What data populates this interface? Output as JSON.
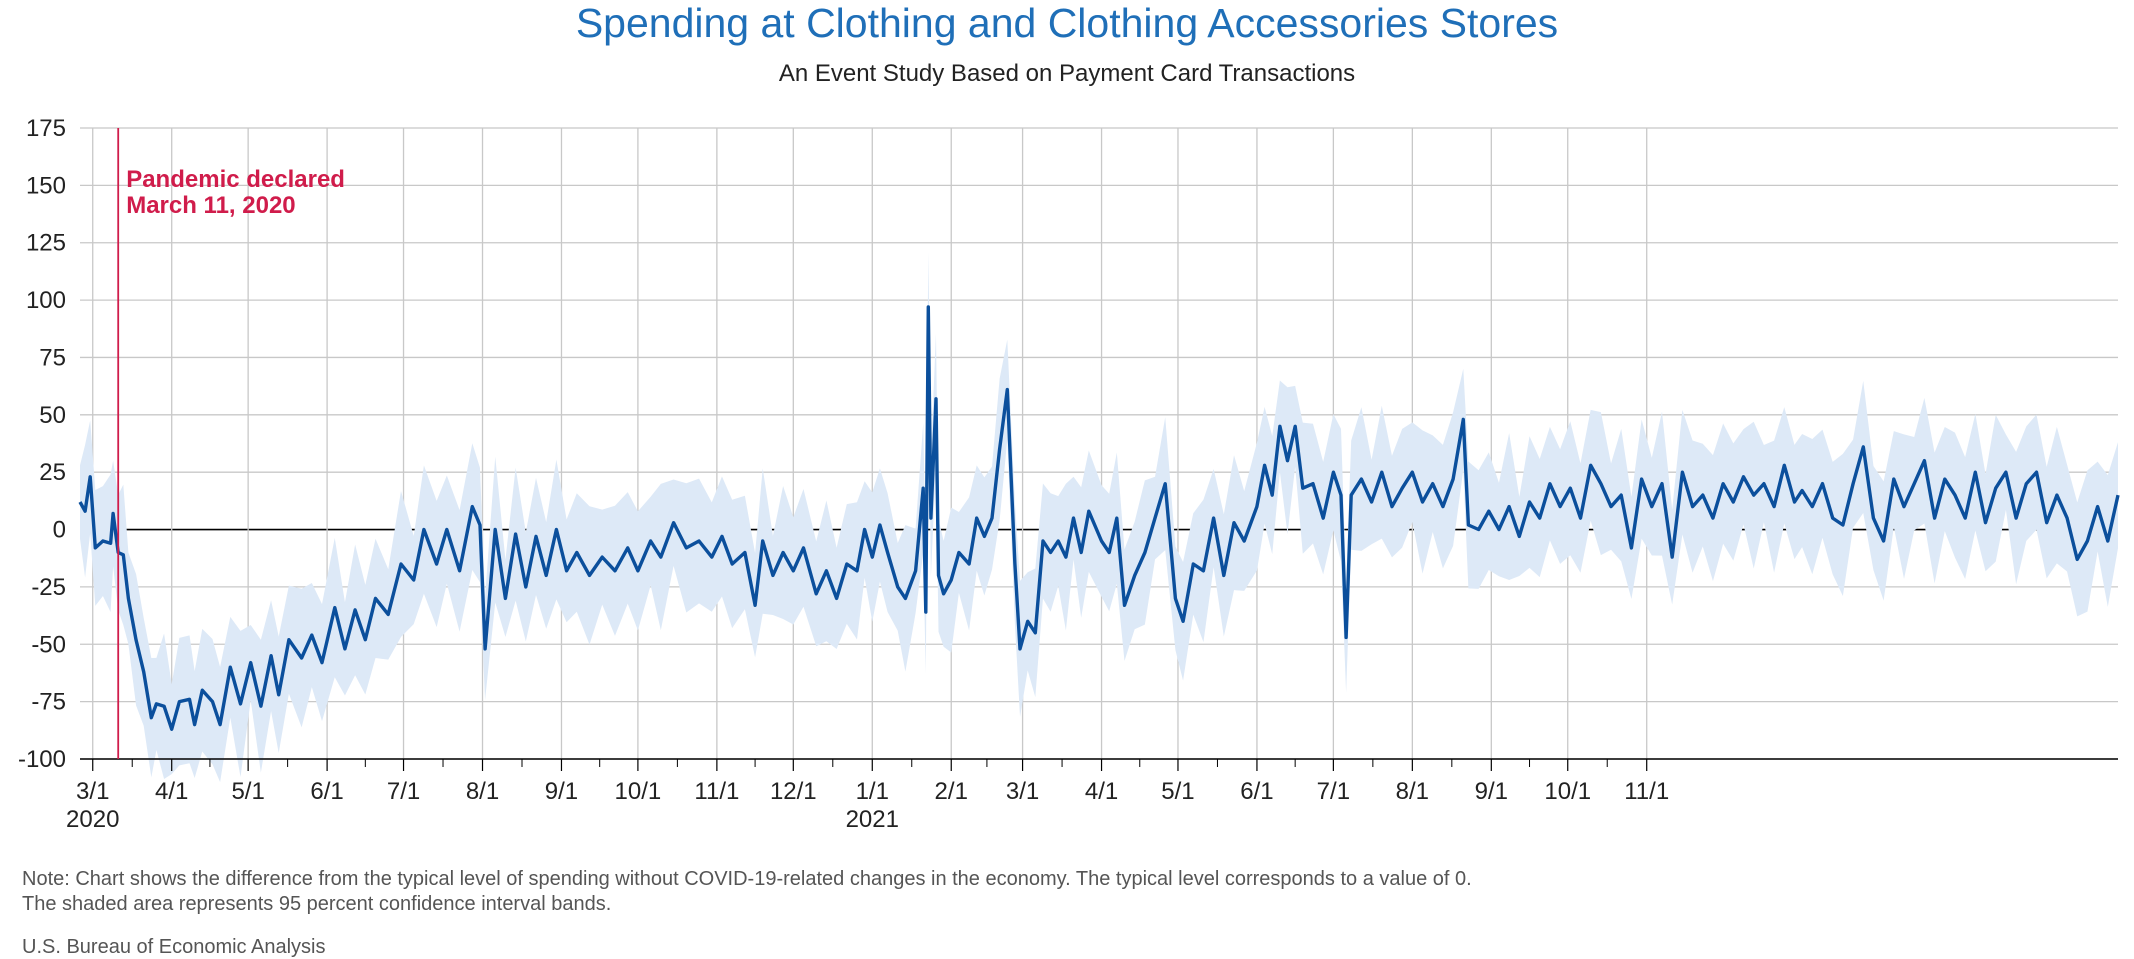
{
  "title": "Spending at Clothing and Clothing Accessories Stores",
  "subtitle": "An Event Study Based on Payment Card Transactions",
  "note_line1": "Note: Chart shows the difference from the typical level of spending without COVID-19-related changes in the economy. The typical level corresponds to a value of 0.",
  "note_line2": "The shaded area represents 95 percent confidence interval bands.",
  "source": "U.S. Bureau of Economic Analysis",
  "colors": {
    "line": "#0b4f9c",
    "band": "#dde9f7",
    "annotation": "#d01c4b",
    "grid": "#c8c8c8",
    "zero": "#000000",
    "title": "#1f6fb8"
  },
  "chart_data": {
    "type": "line",
    "title": "Spending at Clothing and Clothing Accessories Stores",
    "subtitle": "An Event Study Based on Payment Card Transactions",
    "ylim": [
      -100,
      175
    ],
    "y_ticks": [
      "175",
      "150",
      "125",
      "100",
      "75",
      "50",
      "25",
      "0",
      "-25",
      "-50",
      "-75",
      "-100"
    ],
    "x_tick_labels": [
      "3/1",
      "4/1",
      "5/1",
      "6/1",
      "7/1",
      "8/1",
      "9/1",
      "10/1",
      "11/1",
      "12/1",
      "1/1",
      "2/1",
      "3/1",
      "4/1",
      "5/1",
      "6/1",
      "7/1",
      "8/1",
      "9/1",
      "10/1",
      "11/1"
    ],
    "year_labels": [
      {
        "label": "2020",
        "at": "3/1/2020"
      },
      {
        "label": "2021",
        "at": "1/1/2021"
      }
    ],
    "annotation": {
      "label_line1": "Pandemic declared",
      "label_line2": "March 11, 2020",
      "date": "2020-03-11"
    },
    "grid": true,
    "x_start": "2020-02-25",
    "x_end": "2021-11-12",
    "series_key_points": [
      [
        "2020-02-25",
        12
      ],
      [
        "2020-02-27",
        8
      ],
      [
        "2020-02-29",
        23
      ],
      [
        "2020-03-02",
        -8
      ],
      [
        "2020-03-05",
        -5
      ],
      [
        "2020-03-08",
        -6
      ],
      [
        "2020-03-09",
        7
      ],
      [
        "2020-03-11",
        -10
      ],
      [
        "2020-03-13",
        -11
      ],
      [
        "2020-03-15",
        -30
      ],
      [
        "2020-03-18",
        -48
      ],
      [
        "2020-03-21",
        -62
      ],
      [
        "2020-03-24",
        -82
      ],
      [
        "2020-03-26",
        -76
      ],
      [
        "2020-03-29",
        -77
      ],
      [
        "2020-04-01",
        -87
      ],
      [
        "2020-04-04",
        -75
      ],
      [
        "2020-04-08",
        -74
      ],
      [
        "2020-04-10",
        -85
      ],
      [
        "2020-04-13",
        -70
      ],
      [
        "2020-04-17",
        -75
      ],
      [
        "2020-04-20",
        -85
      ],
      [
        "2020-04-24",
        -60
      ],
      [
        "2020-04-28",
        -76
      ],
      [
        "2020-05-02",
        -58
      ],
      [
        "2020-05-06",
        -77
      ],
      [
        "2020-05-10",
        -55
      ],
      [
        "2020-05-13",
        -72
      ],
      [
        "2020-05-17",
        -48
      ],
      [
        "2020-05-22",
        -56
      ],
      [
        "2020-05-26",
        -46
      ],
      [
        "2020-05-30",
        -58
      ],
      [
        "2020-06-04",
        -34
      ],
      [
        "2020-06-08",
        -52
      ],
      [
        "2020-06-12",
        -35
      ],
      [
        "2020-06-16",
        -48
      ],
      [
        "2020-06-20",
        -30
      ],
      [
        "2020-06-25",
        -37
      ],
      [
        "2020-06-30",
        -15
      ],
      [
        "2020-07-05",
        -22
      ],
      [
        "2020-07-09",
        0
      ],
      [
        "2020-07-14",
        -15
      ],
      [
        "2020-07-18",
        0
      ],
      [
        "2020-07-23",
        -18
      ],
      [
        "2020-07-28",
        10
      ],
      [
        "2020-07-31",
        2
      ],
      [
        "2020-08-02",
        -52
      ],
      [
        "2020-08-06",
        0
      ],
      [
        "2020-08-10",
        -30
      ],
      [
        "2020-08-14",
        -2
      ],
      [
        "2020-08-18",
        -25
      ],
      [
        "2020-08-22",
        -3
      ],
      [
        "2020-08-26",
        -20
      ],
      [
        "2020-08-30",
        0
      ],
      [
        "2020-09-03",
        -18
      ],
      [
        "2020-09-07",
        -10
      ],
      [
        "2020-09-12",
        -20
      ],
      [
        "2020-09-17",
        -12
      ],
      [
        "2020-09-22",
        -18
      ],
      [
        "2020-09-27",
        -8
      ],
      [
        "2020-10-01",
        -18
      ],
      [
        "2020-10-06",
        -5
      ],
      [
        "2020-10-10",
        -12
      ],
      [
        "2020-10-15",
        3
      ],
      [
        "2020-10-20",
        -8
      ],
      [
        "2020-10-25",
        -5
      ],
      [
        "2020-10-30",
        -12
      ],
      [
        "2020-11-03",
        -3
      ],
      [
        "2020-11-07",
        -15
      ],
      [
        "2020-11-12",
        -10
      ],
      [
        "2020-11-16",
        -33
      ],
      [
        "2020-11-19",
        -5
      ],
      [
        "2020-11-23",
        -20
      ],
      [
        "2020-11-27",
        -10
      ],
      [
        "2020-12-01",
        -18
      ],
      [
        "2020-12-05",
        -8
      ],
      [
        "2020-12-10",
        -28
      ],
      [
        "2020-12-14",
        -18
      ],
      [
        "2020-12-18",
        -30
      ],
      [
        "2020-12-22",
        -15
      ],
      [
        "2020-12-26",
        -18
      ],
      [
        "2020-12-29",
        0
      ],
      [
        "2021-01-01",
        -12
      ],
      [
        "2021-01-04",
        2
      ],
      [
        "2021-01-07",
        -10
      ],
      [
        "2021-01-11",
        -25
      ],
      [
        "2021-01-14",
        -30
      ],
      [
        "2021-01-18",
        -18
      ],
      [
        "2021-01-21",
        18
      ],
      [
        "2021-01-22",
        -36
      ],
      [
        "2021-01-23",
        97
      ],
      [
        "2021-01-24",
        5
      ],
      [
        "2021-01-26",
        57
      ],
      [
        "2021-01-27",
        -20
      ],
      [
        "2021-01-29",
        -28
      ],
      [
        "2021-02-01",
        -22
      ],
      [
        "2021-02-04",
        -10
      ],
      [
        "2021-02-08",
        -15
      ],
      [
        "2021-02-11",
        5
      ],
      [
        "2021-02-14",
        -3
      ],
      [
        "2021-02-17",
        5
      ],
      [
        "2021-02-20",
        35
      ],
      [
        "2021-02-23",
        61
      ],
      [
        "2021-02-26",
        -15
      ],
      [
        "2021-02-28",
        -52
      ],
      [
        "2021-03-03",
        -40
      ],
      [
        "2021-03-06",
        -45
      ],
      [
        "2021-03-09",
        -5
      ],
      [
        "2021-03-12",
        -10
      ],
      [
        "2021-03-15",
        -5
      ],
      [
        "2021-03-18",
        -12
      ],
      [
        "2021-03-21",
        5
      ],
      [
        "2021-03-24",
        -10
      ],
      [
        "2021-03-27",
        8
      ],
      [
        "2021-04-01",
        -5
      ],
      [
        "2021-04-04",
        -10
      ],
      [
        "2021-04-07",
        5
      ],
      [
        "2021-04-10",
        -33
      ],
      [
        "2021-04-14",
        -20
      ],
      [
        "2021-04-18",
        -10
      ],
      [
        "2021-04-22",
        5
      ],
      [
        "2021-04-26",
        20
      ],
      [
        "2021-04-30",
        -30
      ],
      [
        "2021-05-03",
        -40
      ],
      [
        "2021-05-07",
        -15
      ],
      [
        "2021-05-11",
        -18
      ],
      [
        "2021-05-15",
        5
      ],
      [
        "2021-05-19",
        -20
      ],
      [
        "2021-05-23",
        3
      ],
      [
        "2021-05-27",
        -5
      ],
      [
        "2021-06-01",
        10
      ],
      [
        "2021-06-04",
        28
      ],
      [
        "2021-06-07",
        15
      ],
      [
        "2021-06-10",
        45
      ],
      [
        "2021-06-13",
        30
      ],
      [
        "2021-06-16",
        45
      ],
      [
        "2021-06-19",
        18
      ],
      [
        "2021-06-23",
        20
      ],
      [
        "2021-06-27",
        5
      ],
      [
        "2021-07-01",
        25
      ],
      [
        "2021-07-04",
        15
      ],
      [
        "2021-07-06",
        -47
      ],
      [
        "2021-07-08",
        15
      ],
      [
        "2021-07-12",
        22
      ],
      [
        "2021-07-16",
        12
      ],
      [
        "2021-07-20",
        25
      ],
      [
        "2021-07-24",
        10
      ],
      [
        "2021-07-28",
        18
      ],
      [
        "2021-08-01",
        25
      ],
      [
        "2021-08-05",
        12
      ],
      [
        "2021-08-09",
        20
      ],
      [
        "2021-08-13",
        10
      ],
      [
        "2021-08-17",
        22
      ],
      [
        "2021-08-21",
        48
      ],
      [
        "2021-08-23",
        2
      ],
      [
        "2021-08-27",
        0
      ],
      [
        "2021-08-31",
        8
      ],
      [
        "2021-09-04",
        0
      ],
      [
        "2021-09-08",
        10
      ],
      [
        "2021-09-12",
        -3
      ],
      [
        "2021-09-16",
        12
      ],
      [
        "2021-09-20",
        5
      ],
      [
        "2021-09-24",
        20
      ],
      [
        "2021-09-28",
        10
      ],
      [
        "2021-10-02",
        18
      ],
      [
        "2021-10-06",
        5
      ],
      [
        "2021-10-10",
        28
      ],
      [
        "2021-10-14",
        20
      ],
      [
        "2021-10-18",
        10
      ],
      [
        "2021-10-22",
        15
      ],
      [
        "2021-10-26",
        -8
      ],
      [
        "2021-10-30",
        22
      ],
      [
        "2021-11-03",
        10
      ],
      [
        "2021-11-07",
        20
      ],
      [
        "2021-11-11",
        -12
      ],
      [
        "2021-11-15",
        25
      ],
      [
        "2021-11-19",
        10
      ],
      [
        "2021-11-23",
        15
      ],
      [
        "2021-11-27",
        5
      ],
      [
        "2021-12-01",
        20
      ],
      [
        "2021-12-05",
        12
      ],
      [
        "2021-12-09",
        23
      ],
      [
        "2021-12-13",
        15
      ],
      [
        "2021-12-17",
        20
      ],
      [
        "2021-12-21",
        10
      ],
      [
        "2021-12-25",
        28
      ],
      [
        "2021-12-29",
        12
      ],
      [
        "2022-01-01",
        17
      ],
      [
        "2022-01-05",
        10
      ],
      [
        "2022-01-09",
        20
      ],
      [
        "2022-01-13",
        5
      ],
      [
        "2022-01-17",
        2
      ],
      [
        "2022-01-21",
        20
      ],
      [
        "2022-01-25",
        36
      ],
      [
        "2022-01-29",
        5
      ],
      [
        "2022-02-02",
        -5
      ],
      [
        "2022-02-06",
        22
      ],
      [
        "2022-02-10",
        10
      ],
      [
        "2022-02-14",
        20
      ],
      [
        "2022-02-18",
        30
      ],
      [
        "2022-02-22",
        5
      ],
      [
        "2022-02-26",
        22
      ],
      [
        "2022-03-02",
        15
      ],
      [
        "2022-03-06",
        5
      ],
      [
        "2022-03-10",
        25
      ],
      [
        "2022-03-14",
        3
      ],
      [
        "2022-03-18",
        18
      ],
      [
        "2022-03-22",
        25
      ],
      [
        "2022-03-26",
        5
      ],
      [
        "2022-03-30",
        20
      ],
      [
        "2022-04-03",
        25
      ],
      [
        "2022-04-07",
        3
      ],
      [
        "2022-04-11",
        15
      ],
      [
        "2022-04-15",
        5
      ],
      [
        "2022-04-19",
        -13
      ],
      [
        "2022-04-23",
        -5
      ],
      [
        "2022-04-27",
        10
      ],
      [
        "2022-05-01",
        -5
      ],
      [
        "2022-05-05",
        15
      ]
    ]
  }
}
